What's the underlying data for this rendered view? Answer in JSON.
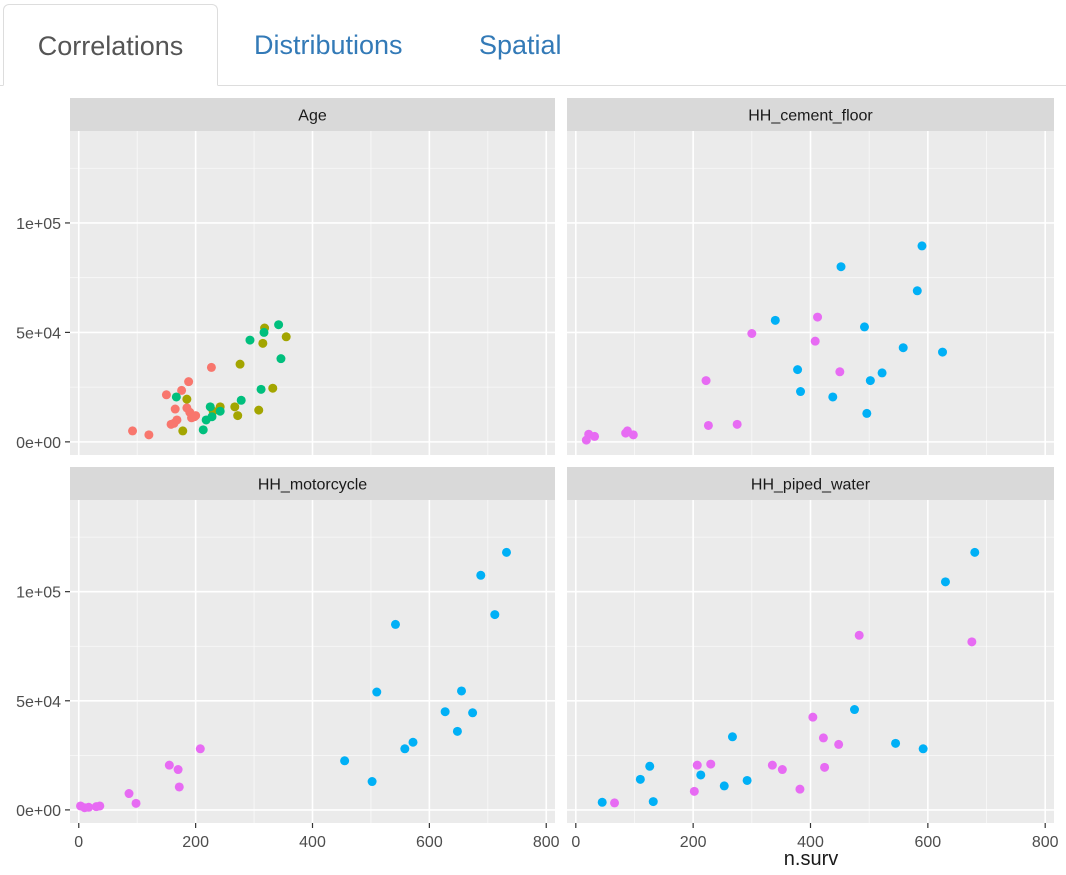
{
  "tabs": [
    {
      "label": "Correlations",
      "active": true
    },
    {
      "label": "Distributions",
      "active": false
    },
    {
      "label": "Spatial",
      "active": false
    }
  ],
  "colors": {
    "panel_bg": "#ebebeb",
    "strip_bg": "#d9d9d9",
    "grid": "#ffffff",
    "red": "#f8766d",
    "olive": "#a3a500",
    "green": "#00bf7d",
    "blue": "#00b0f6",
    "magenta": "#e76bf3"
  },
  "chart_data": {
    "type": "scatter",
    "xlabel": "n.surv",
    "ylabel": "",
    "xlim": [
      -15,
      815
    ],
    "ylim": [
      -6000,
      142000
    ],
    "x_ticks": [
      0,
      200,
      400,
      600,
      800
    ],
    "x_tick_labels": [
      "0",
      "200",
      "400",
      "600",
      "800"
    ],
    "y_ticks": [
      0,
      50000,
      100000
    ],
    "y_tick_labels": [
      "0e+00",
      "5e+04",
      "1e+05"
    ],
    "grid": true,
    "legend": "none",
    "panels": [
      {
        "title": "Age",
        "series": [
          {
            "color": "red",
            "points": [
              [
                92,
                5000
              ],
              [
                120,
                3200
              ],
              [
                150,
                21500
              ],
              [
                158,
                8000
              ],
              [
                163,
                8500
              ],
              [
                165,
                15000
              ],
              [
                168,
                10000
              ],
              [
                176,
                23500
              ],
              [
                185,
                15500
              ],
              [
                188,
                27500
              ],
              [
                190,
                13500
              ],
              [
                193,
                11000
              ],
              [
                198,
                11500
              ],
              [
                200,
                12000
              ],
              [
                227,
                34000
              ]
            ]
          },
          {
            "color": "olive",
            "points": [
              [
                178,
                5000
              ],
              [
                185,
                19500
              ],
              [
                230,
                14000
              ],
              [
                242,
                16000
              ],
              [
                267,
                16000
              ],
              [
                272,
                12000
              ],
              [
                276,
                35500
              ],
              [
                308,
                14500
              ],
              [
                315,
                45000
              ],
              [
                318,
                52000
              ],
              [
                332,
                24500
              ],
              [
                355,
                48000
              ]
            ]
          },
          {
            "color": "green",
            "points": [
              [
                167,
                20500
              ],
              [
                213,
                5500
              ],
              [
                218,
                10000
              ],
              [
                225,
                16000
              ],
              [
                228,
                11500
              ],
              [
                242,
                14000
              ],
              [
                278,
                19000
              ],
              [
                293,
                46500
              ],
              [
                312,
                24000
              ],
              [
                317,
                50000
              ],
              [
                342,
                53500
              ],
              [
                346,
                38000
              ]
            ]
          }
        ]
      },
      {
        "title": "HH_cement_floor",
        "series": [
          {
            "color": "magenta",
            "points": [
              [
                18,
                800
              ],
              [
                22,
                3500
              ],
              [
                32,
                2500
              ],
              [
                85,
                4000
              ],
              [
                88,
                5000
              ],
              [
                98,
                3200
              ],
              [
                222,
                28000
              ],
              [
                226,
                7500
              ],
              [
                275,
                8000
              ],
              [
                300,
                49500
              ],
              [
                408,
                46000
              ],
              [
                412,
                57000
              ],
              [
                450,
                32000
              ]
            ]
          },
          {
            "color": "blue",
            "points": [
              [
                340,
                55500
              ],
              [
                378,
                33000
              ],
              [
                383,
                23000
              ],
              [
                438,
                20500
              ],
              [
                452,
                80000
              ],
              [
                492,
                52500
              ],
              [
                496,
                13000
              ],
              [
                502,
                28000
              ],
              [
                522,
                31500
              ],
              [
                558,
                43000
              ],
              [
                582,
                69000
              ],
              [
                590,
                89500
              ],
              [
                625,
                41000
              ]
            ]
          }
        ]
      },
      {
        "title": "HH_motorcycle",
        "series": [
          {
            "color": "magenta",
            "points": [
              [
                3,
                1800
              ],
              [
                10,
                1000
              ],
              [
                17,
                1200
              ],
              [
                30,
                1500
              ],
              [
                36,
                1800
              ],
              [
                86,
                7500
              ],
              [
                98,
                3000
              ],
              [
                155,
                20500
              ],
              [
                170,
                18500
              ],
              [
                172,
                10500
              ],
              [
                208,
                28000
              ]
            ]
          },
          {
            "color": "blue",
            "points": [
              [
                455,
                22500
              ],
              [
                502,
                13000
              ],
              [
                510,
                54000
              ],
              [
                542,
                85000
              ],
              [
                558,
                28000
              ],
              [
                572,
                31000
              ],
              [
                627,
                45000
              ],
              [
                648,
                36000
              ],
              [
                655,
                54500
              ],
              [
                674,
                44500
              ],
              [
                688,
                107500
              ],
              [
                712,
                89500
              ],
              [
                732,
                118000
              ]
            ]
          }
        ]
      },
      {
        "title": "HH_piped_water",
        "series": [
          {
            "color": "magenta",
            "points": [
              [
                66,
                3200
              ],
              [
                202,
                8500
              ],
              [
                207,
                20500
              ],
              [
                230,
                21000
              ],
              [
                335,
                20500
              ],
              [
                352,
                18500
              ],
              [
                382,
                9500
              ],
              [
                404,
                42500
              ],
              [
                422,
                33000
              ],
              [
                424,
                19500
              ],
              [
                448,
                30000
              ],
              [
                483,
                80000
              ],
              [
                675,
                77000
              ]
            ]
          },
          {
            "color": "blue",
            "points": [
              [
                45,
                3500
              ],
              [
                110,
                14000
              ],
              [
                126,
                20000
              ],
              [
                132,
                3800
              ],
              [
                213,
                16000
              ],
              [
                253,
                11000
              ],
              [
                267,
                33500
              ],
              [
                292,
                13500
              ],
              [
                475,
                46000
              ],
              [
                545,
                30500
              ],
              [
                592,
                28000
              ],
              [
                630,
                104500
              ],
              [
                680,
                118000
              ]
            ]
          }
        ]
      }
    ]
  }
}
